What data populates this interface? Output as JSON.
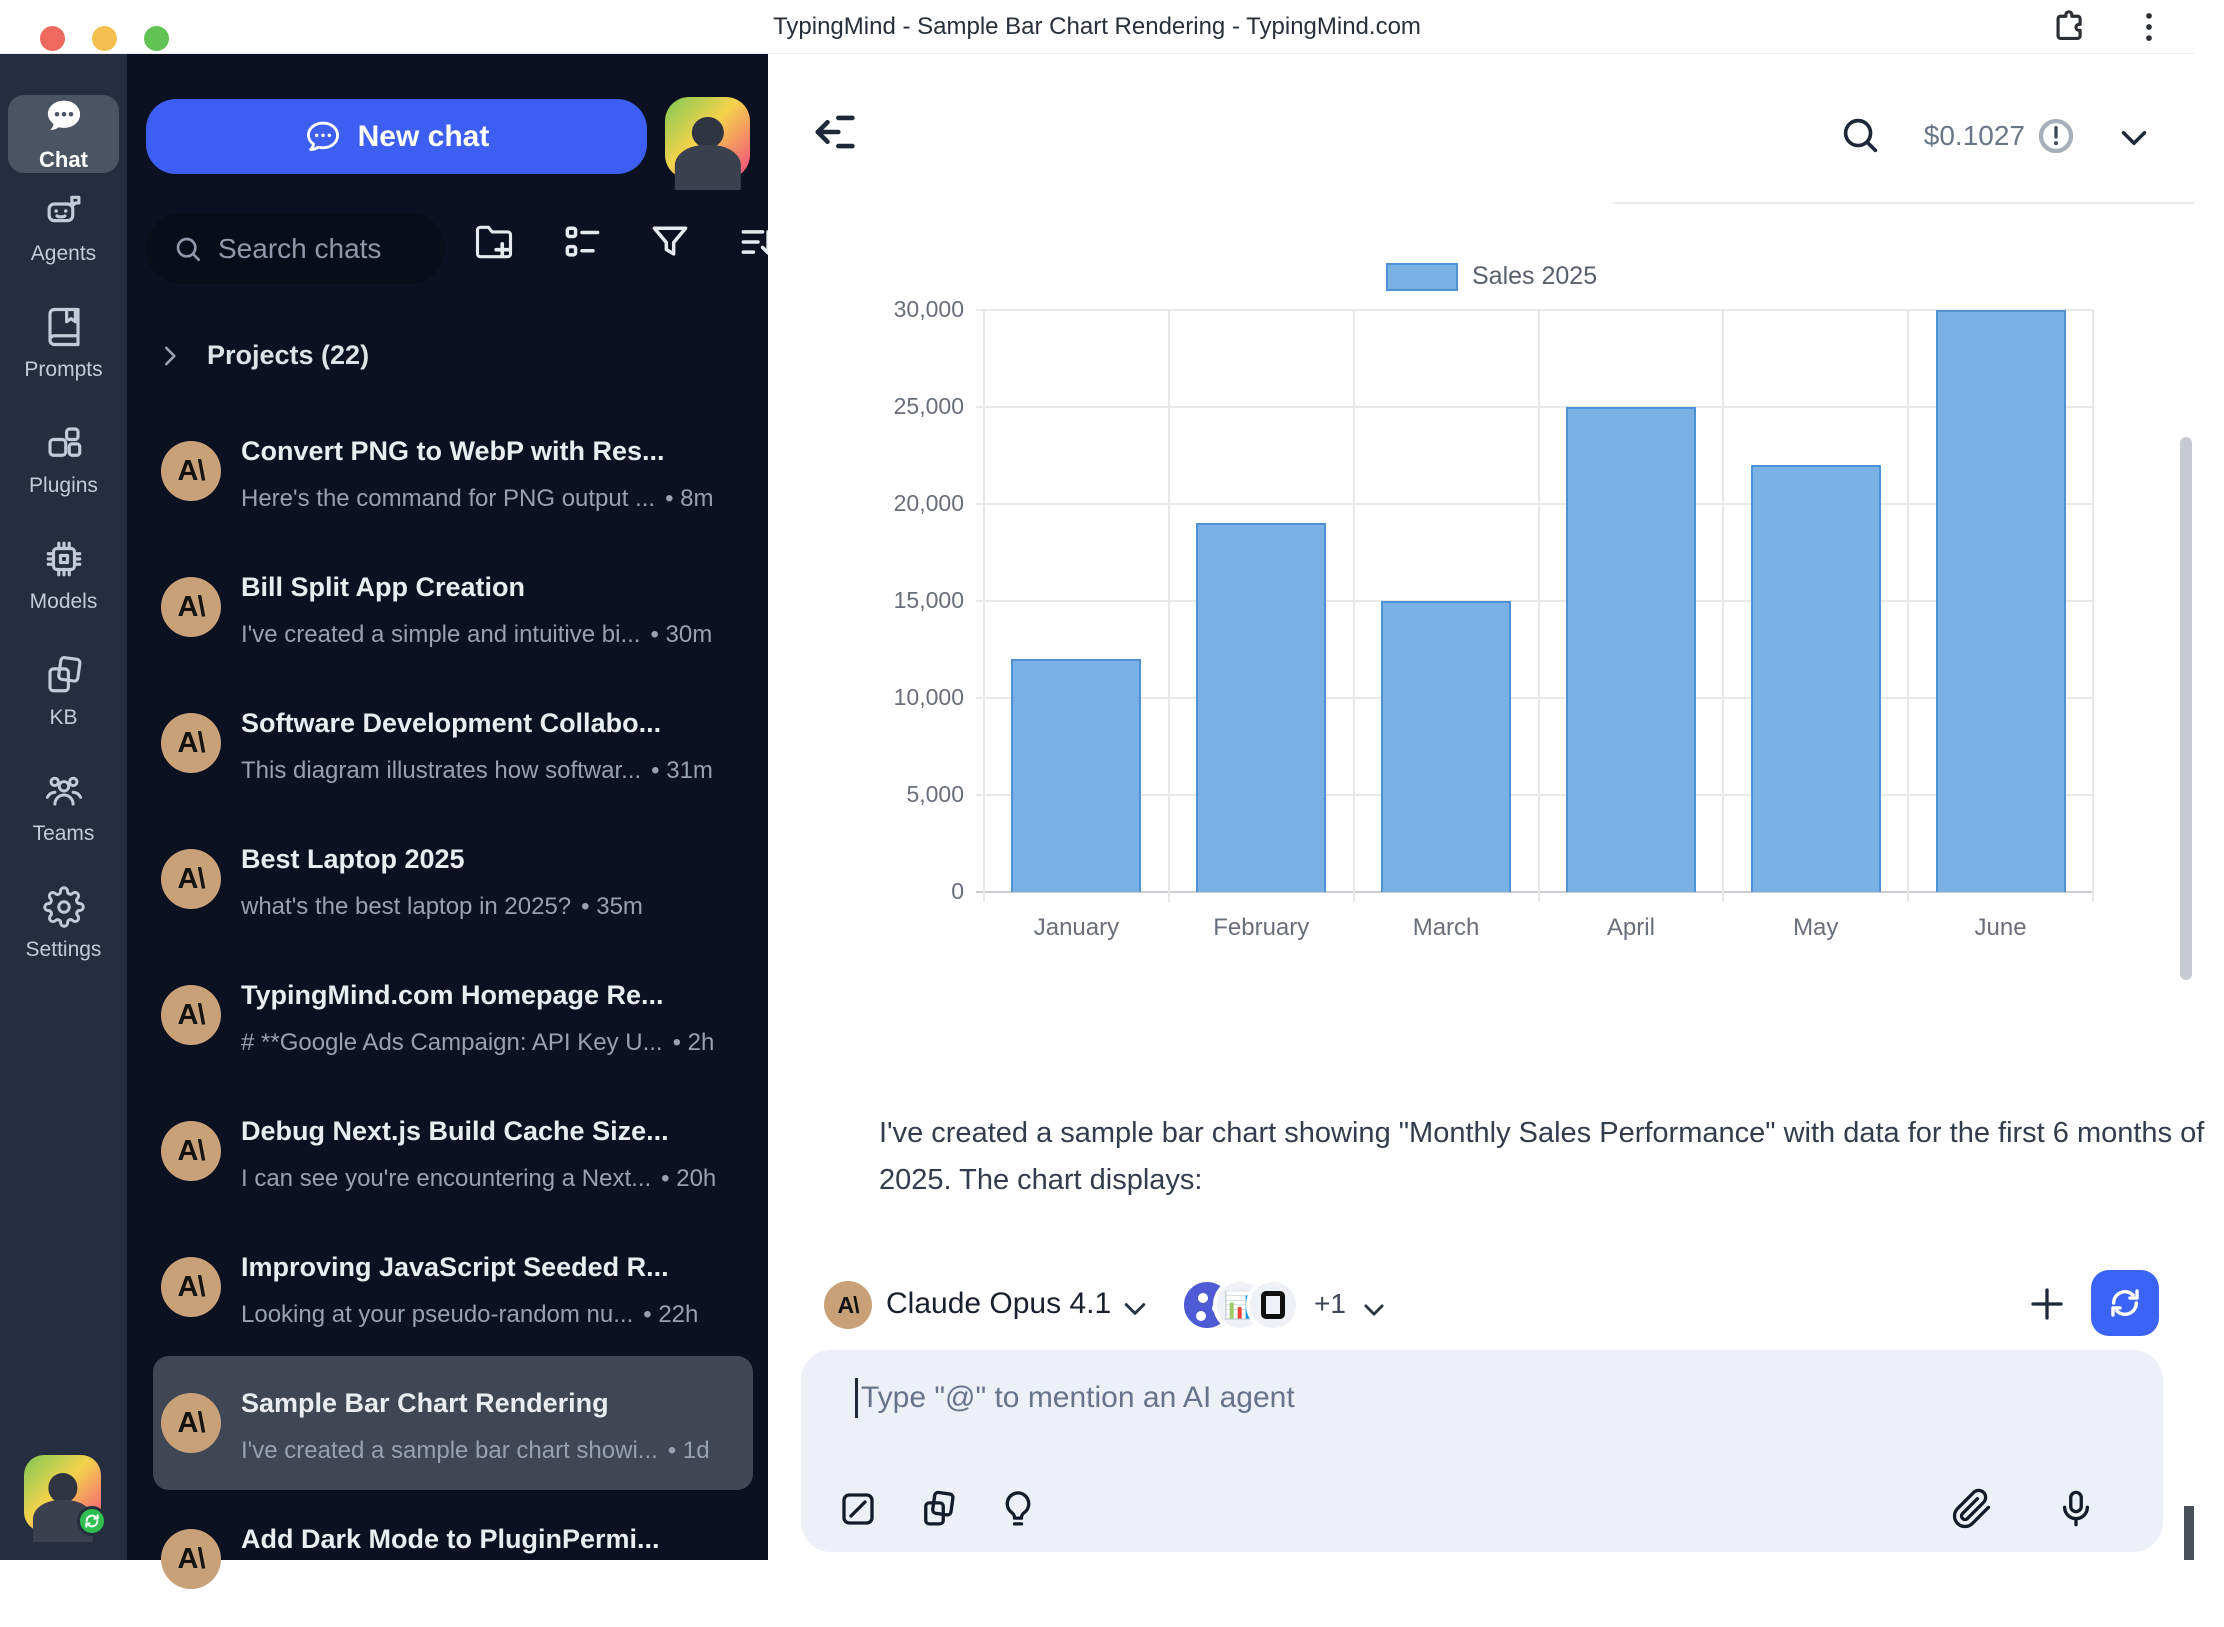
{
  "window": {
    "title": "TypingMind - Sample Bar Chart Rendering - TypingMind.com"
  },
  "rail": {
    "items": [
      {
        "id": "chat",
        "label": "Chat",
        "active": true
      },
      {
        "id": "agents",
        "label": "Agents",
        "active": false
      },
      {
        "id": "prompts",
        "label": "Prompts",
        "active": false
      },
      {
        "id": "plugins",
        "label": "Plugins",
        "active": false
      },
      {
        "id": "models",
        "label": "Models",
        "active": false
      },
      {
        "id": "kb",
        "label": "KB",
        "active": false
      },
      {
        "id": "teams",
        "label": "Teams",
        "active": false
      },
      {
        "id": "settings",
        "label": "Settings",
        "active": false
      }
    ]
  },
  "sidebar": {
    "new_chat_label": "New chat",
    "search_placeholder": "Search chats",
    "projects_label": "Projects (22)",
    "avatar_logo": "A\\",
    "chats": [
      {
        "title": "Convert PNG to WebP with Res...",
        "subtitle": "Here's the command for PNG output ...",
        "time": "8m",
        "selected": false
      },
      {
        "title": "Bill Split App Creation",
        "subtitle": "I've created a simple and intuitive bi...",
        "time": "30m",
        "selected": false
      },
      {
        "title": "Software Development Collabo...",
        "subtitle": "This diagram illustrates how softwar...",
        "time": "31m",
        "selected": false
      },
      {
        "title": "Best Laptop 2025",
        "subtitle": "what's the best laptop in 2025?",
        "time": "35m",
        "selected": false
      },
      {
        "title": "TypingMind.com Homepage Re...",
        "subtitle": "# **Google Ads Campaign: API Key U...",
        "time": "2h",
        "selected": false
      },
      {
        "title": "Debug Next.js Build Cache Size...",
        "subtitle": "I can see you're encountering a Next...",
        "time": "20h",
        "selected": false
      },
      {
        "title": "Improving JavaScript Seeded R...",
        "subtitle": "Looking at your pseudo-random nu...",
        "time": "22h",
        "selected": false
      },
      {
        "title": "Sample Bar Chart Rendering",
        "subtitle": "I've created a sample bar chart showi...",
        "time": "1d",
        "selected": true
      },
      {
        "title": "Add Dark Mode to PluginPermi...",
        "subtitle": "",
        "time": "",
        "selected": false
      }
    ]
  },
  "topbar": {
    "cost": "$0.1027"
  },
  "chart_data": {
    "type": "bar",
    "categories": [
      "January",
      "February",
      "March",
      "April",
      "May",
      "June"
    ],
    "values": [
      12000,
      19000,
      15000,
      25000,
      22000,
      30000
    ],
    "legend_label": "Sales 2025",
    "title": "",
    "xlabel": "",
    "ylabel": "",
    "ylim": [
      0,
      30000
    ],
    "ytick_step": 5000,
    "grid": true,
    "legend_position": "top",
    "bar_color": "#79b1e5",
    "bar_border": "#4e92d3"
  },
  "message": {
    "text": "I've created a sample bar chart showing \"Monthly Sales Performance\" with data for the first 6 months of 2025. The chart displays:"
  },
  "composer": {
    "model_name": "Claude Opus 4.1",
    "model_logo": "A\\",
    "plugins_more": "+1",
    "plugin2_glyph": "📊",
    "input_placeholder": "Type \"@\" to mention an AI agent"
  },
  "colors": {
    "accent_blue": "#3c5ff1",
    "regen_blue": "#3b63f6",
    "rail_bg": "#252e3f",
    "list_bg": "#0b1120",
    "selected_item_bg": "#3f4654",
    "anthropic_tan": "#c9a179",
    "bar_fill": "#79b1e5",
    "bar_border": "#4e92d3"
  }
}
